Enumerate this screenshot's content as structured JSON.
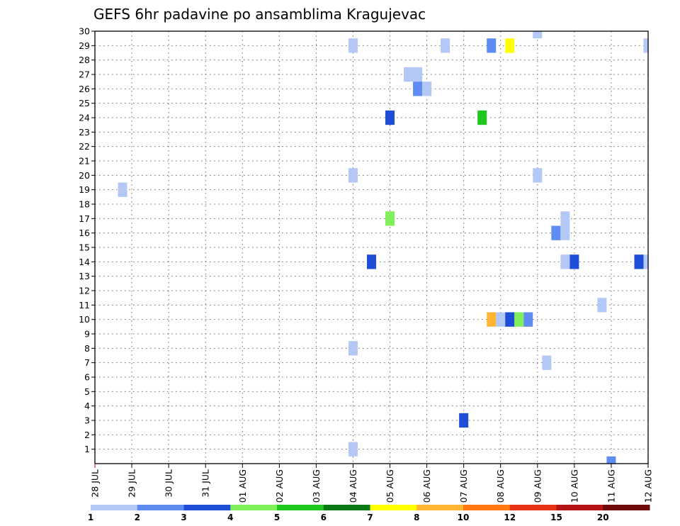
{
  "chart_data": {
    "type": "heatmap",
    "title": "GEFS 6hr padavine po ansamblima Kragujevac",
    "xlabel": "",
    "ylabel": "",
    "x_tick_labels": [
      "28 JUL",
      "29 JUL",
      "30 JUL",
      "31 JUL",
      "01 AUG",
      "02 AUG",
      "03 AUG",
      "04 AUG",
      "05 AUG",
      "06 AUG",
      "07 AUG",
      "08 AUG",
      "09 AUG",
      "10 AUG",
      "11 AUG",
      "12 AUG"
    ],
    "y_tick_labels": [
      "1",
      "2",
      "3",
      "4",
      "5",
      "6",
      "7",
      "8",
      "9",
      "10",
      "11",
      "12",
      "13",
      "14",
      "15",
      "16",
      "17",
      "18",
      "19",
      "20",
      "21",
      "22",
      "23",
      "24",
      "25",
      "26",
      "27",
      "28",
      "29",
      "30"
    ],
    "xlim": [
      0,
      15
    ],
    "ylim": [
      0,
      30
    ],
    "grid": true,
    "colorbar": {
      "levels": [
        "1",
        "2",
        "3",
        "4",
        "5",
        "6",
        "7",
        "8",
        "10",
        "12",
        "15",
        "20"
      ],
      "colors": [
        "#b4c8f5",
        "#5f8cf0",
        "#1e4ed8",
        "#7ff05a",
        "#1ec81e",
        "#0a7814",
        "#ffff00",
        "#ffb432",
        "#ff7814",
        "#e63214",
        "#b41414",
        "#6e0a0a"
      ]
    },
    "cells": [
      {
        "day": 0.75,
        "member": 19,
        "value": 1
      },
      {
        "day": 7.0,
        "member": 29,
        "value": 1
      },
      {
        "day": 7.0,
        "member": 20,
        "value": 1
      },
      {
        "day": 7.0,
        "member": 8,
        "value": 1
      },
      {
        "day": 7.0,
        "member": 1,
        "value": 1
      },
      {
        "day": 7.5,
        "member": 14,
        "value": 3
      },
      {
        "day": 8.0,
        "member": 24,
        "value": 3
      },
      {
        "day": 8.0,
        "member": 17,
        "value": 4
      },
      {
        "day": 8.5,
        "member": 27,
        "value": 1
      },
      {
        "day": 8.75,
        "member": 27,
        "value": 1
      },
      {
        "day": 8.75,
        "member": 26,
        "value": 2
      },
      {
        "day": 9.0,
        "member": 26,
        "value": 1
      },
      {
        "day": 9.5,
        "member": 29,
        "value": 1
      },
      {
        "day": 10.0,
        "member": 3,
        "value": 3
      },
      {
        "day": 10.5,
        "member": 24,
        "value": 5
      },
      {
        "day": 10.75,
        "member": 29,
        "value": 2
      },
      {
        "day": 10.75,
        "member": 10,
        "value": 8
      },
      {
        "day": 11.0,
        "member": 10,
        "value": 1
      },
      {
        "day": 11.25,
        "member": 10,
        "value": 3
      },
      {
        "day": 11.25,
        "member": 29,
        "value": 7
      },
      {
        "day": 11.5,
        "member": 10,
        "value": 4
      },
      {
        "day": 11.75,
        "member": 10,
        "value": 2
      },
      {
        "day": 12.0,
        "member": 30,
        "value": 1
      },
      {
        "day": 12.0,
        "member": 20,
        "value": 1
      },
      {
        "day": 12.25,
        "member": 7,
        "value": 1
      },
      {
        "day": 12.5,
        "member": 16,
        "value": 2
      },
      {
        "day": 12.75,
        "member": 17,
        "value": 1
      },
      {
        "day": 12.75,
        "member": 16,
        "value": 1
      },
      {
        "day": 12.75,
        "member": 14,
        "value": 1
      },
      {
        "day": 13.0,
        "member": 14,
        "value": 3
      },
      {
        "day": 13.75,
        "member": 11,
        "value": 1
      },
      {
        "day": 14.0,
        "member": 0,
        "value": 2
      },
      {
        "day": 14.75,
        "member": 14,
        "value": 3
      },
      {
        "day": 15.0,
        "member": 29,
        "value": 1
      },
      {
        "day": 15.0,
        "member": 14,
        "value": 1
      }
    ]
  }
}
